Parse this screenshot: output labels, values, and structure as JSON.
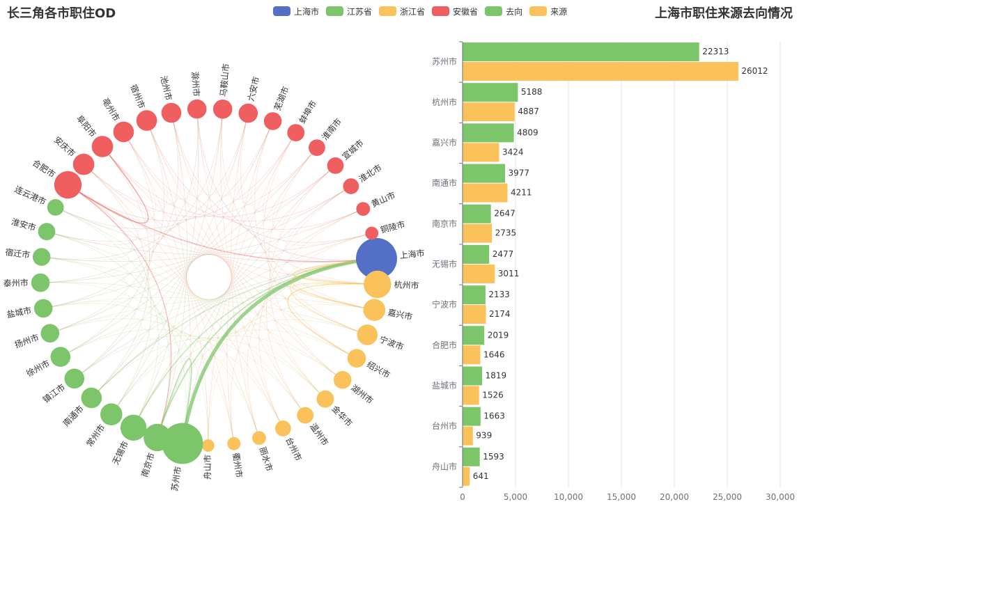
{
  "chart_data": [
    {
      "type": "graph",
      "title": "长三角各市职住OD",
      "layout": "circular",
      "legend": [
        "上海市",
        "江苏省",
        "浙江省",
        "安徽省"
      ],
      "colors": {
        "上海市": "#5470c6",
        "江苏省": "#7cc56b",
        "浙江省": "#fbc15a",
        "安徽省": "#ef5f5f"
      },
      "nodes": [
        {
          "name": "上海市",
          "category": "上海市",
          "size": 5
        },
        {
          "name": "杭州市",
          "category": "浙江省",
          "size": 3
        },
        {
          "name": "嘉兴市",
          "category": "浙江省",
          "size": 2.2
        },
        {
          "name": "宁波市",
          "category": "浙江省",
          "size": 2
        },
        {
          "name": "绍兴市",
          "category": "浙江省",
          "size": 1.7
        },
        {
          "name": "湖州市",
          "category": "浙江省",
          "size": 1.6
        },
        {
          "name": "金华市",
          "category": "浙江省",
          "size": 1.5
        },
        {
          "name": "温州市",
          "category": "浙江省",
          "size": 1.4
        },
        {
          "name": "台州市",
          "category": "浙江省",
          "size": 1.3
        },
        {
          "name": "丽水市",
          "category": "浙江省",
          "size": 1
        },
        {
          "name": "衢州市",
          "category": "浙江省",
          "size": 0.9
        },
        {
          "name": "舟山市",
          "category": "浙江省",
          "size": 0.8
        },
        {
          "name": "苏州市",
          "category": "江苏省",
          "size": 5
        },
        {
          "name": "南京市",
          "category": "江苏省",
          "size": 3
        },
        {
          "name": "无锡市",
          "category": "江苏省",
          "size": 2.8
        },
        {
          "name": "常州市",
          "category": "江苏省",
          "size": 2.2
        },
        {
          "name": "南通市",
          "category": "江苏省",
          "size": 2
        },
        {
          "name": "镇江市",
          "category": "江苏省",
          "size": 1.9
        },
        {
          "name": "徐州市",
          "category": "江苏省",
          "size": 1.9
        },
        {
          "name": "扬州市",
          "category": "江苏省",
          "size": 1.7
        },
        {
          "name": "盐城市",
          "category": "江苏省",
          "size": 1.7
        },
        {
          "name": "泰州市",
          "category": "江苏省",
          "size": 1.7
        },
        {
          "name": "宿迁市",
          "category": "江苏省",
          "size": 1.6
        },
        {
          "name": "淮安市",
          "category": "江苏省",
          "size": 1.5
        },
        {
          "name": "连云港市",
          "category": "江苏省",
          "size": 1.4
        },
        {
          "name": "合肥市",
          "category": "安徽省",
          "size": 3
        },
        {
          "name": "安庆市",
          "category": "安徽省",
          "size": 2.1
        },
        {
          "name": "阜阳市",
          "category": "安徽省",
          "size": 2.1
        },
        {
          "name": "亳州市",
          "category": "安徽省",
          "size": 2
        },
        {
          "name": "宿州市",
          "category": "安徽省",
          "size": 2
        },
        {
          "name": "池州市",
          "category": "安徽省",
          "size": 1.9
        },
        {
          "name": "滁州市",
          "category": "安徽省",
          "size": 1.8
        },
        {
          "name": "马鞍山市",
          "category": "安徽省",
          "size": 1.8
        },
        {
          "name": "六安市",
          "category": "安徽省",
          "size": 1.8
        },
        {
          "name": "芜湖市",
          "category": "安徽省",
          "size": 1.6
        },
        {
          "name": "蚌埠市",
          "category": "安徽省",
          "size": 1.5
        },
        {
          "name": "淮南市",
          "category": "安徽省",
          "size": 1.4
        },
        {
          "name": "宣城市",
          "category": "安徽省",
          "size": 1.4
        },
        {
          "name": "淮北市",
          "category": "安徽省",
          "size": 1.3
        },
        {
          "name": "黄山市",
          "category": "安徽省",
          "size": 1
        },
        {
          "name": "铜陵市",
          "category": "安徽省",
          "size": 0.9
        }
      ]
    },
    {
      "type": "bar",
      "orientation": "horizontal",
      "title": "上海市职住来源去向情况",
      "categories": [
        "苏州市",
        "杭州市",
        "嘉兴市",
        "南通市",
        "南京市",
        "无锡市",
        "宁波市",
        "合肥市",
        "盐城市",
        "台州市",
        "舟山市"
      ],
      "series": [
        {
          "name": "去向",
          "color": "#7cc56b",
          "values": [
            22313,
            5188,
            4809,
            3977,
            2647,
            2477,
            2133,
            2019,
            1819,
            1663,
            1593
          ]
        },
        {
          "name": "来源",
          "color": "#fbc15a",
          "values": [
            26012,
            4887,
            3424,
            4211,
            2735,
            3011,
            2174,
            1646,
            1526,
            939,
            641
          ]
        }
      ],
      "xlim": [
        0,
        30000
      ],
      "xticks": [
        "0",
        "5,000",
        "10,000",
        "15,000",
        "20,000",
        "25,000",
        "30,000"
      ],
      "grid": true
    }
  ],
  "legend_items": [
    {
      "label": "上海市",
      "color": "#5470c6"
    },
    {
      "label": "江苏省",
      "color": "#7cc56b"
    },
    {
      "label": "浙江省",
      "color": "#fbc15a"
    },
    {
      "label": "安徽省",
      "color": "#ef5f5f"
    },
    {
      "label": "去向",
      "color": "#7cc56b"
    },
    {
      "label": "来源",
      "color": "#fbc15a"
    }
  ]
}
